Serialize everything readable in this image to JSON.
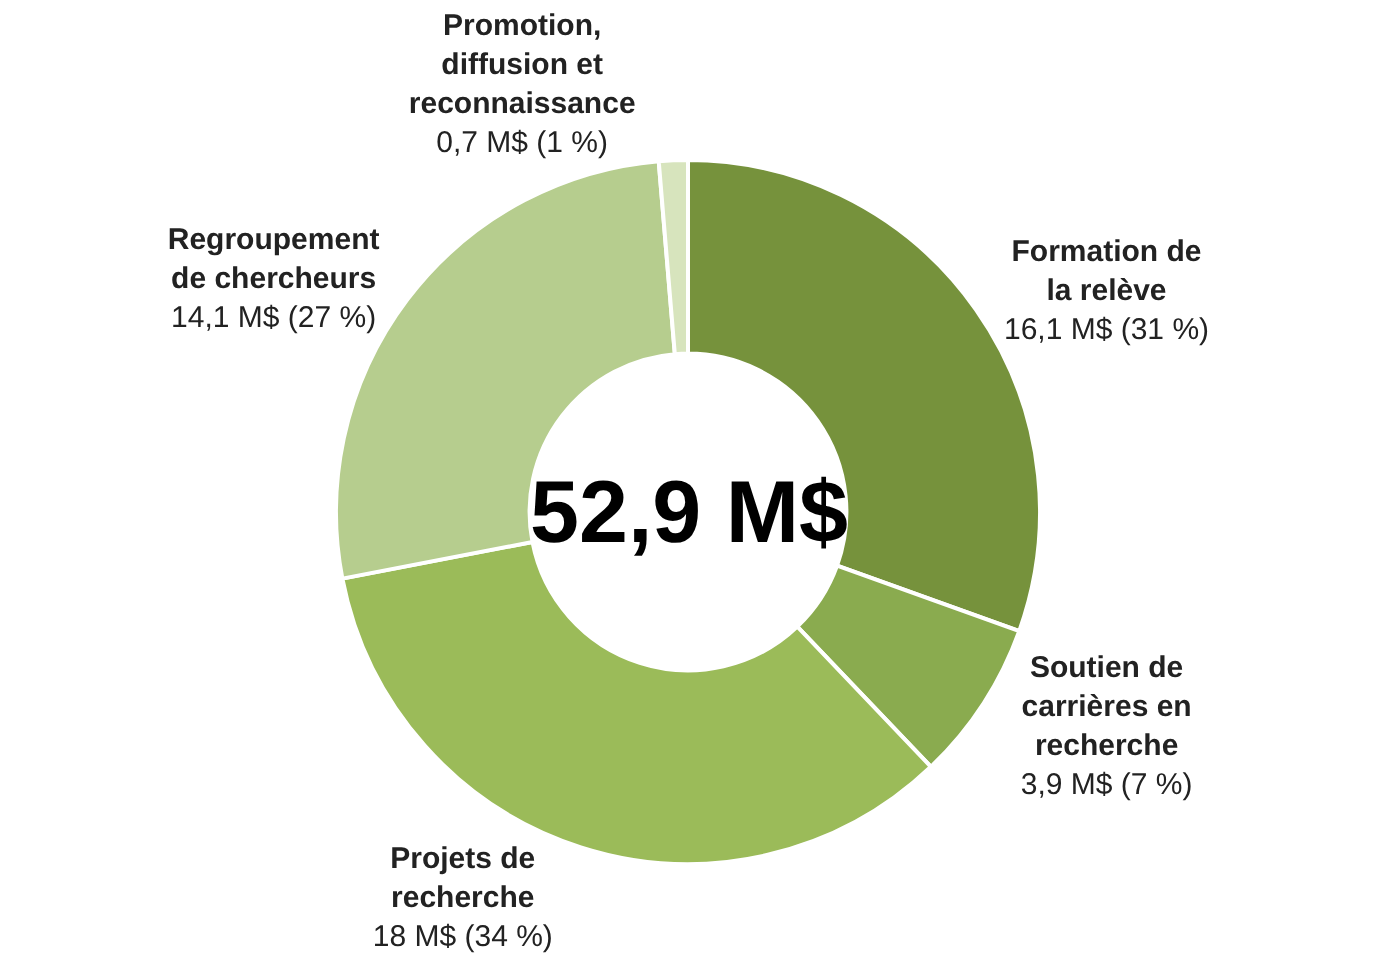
{
  "chart_data": {
    "type": "donut",
    "categories": [
      "Formation de la relève",
      "Soutien de carrières en recherche",
      "Projets de recherche",
      "Regroupement de chercheurs",
      "Promotion, diffusion et reconnaissance"
    ],
    "values": [
      16.1,
      3.9,
      18,
      14.1,
      0.7
    ],
    "colors": [
      "#76923c",
      "#8aab4f",
      "#9bbb59",
      "#b6cd8e",
      "#d7e4bd"
    ],
    "value_labels": [
      "16,1 M$ (31 %)",
      "3,9 M$ (7 %)",
      "18 M$ (34 %)",
      "14,1 M$ (27 %)",
      "0,7 M$ (1 %)"
    ],
    "annotations": [
      "52,9 M$"
    ]
  }
}
